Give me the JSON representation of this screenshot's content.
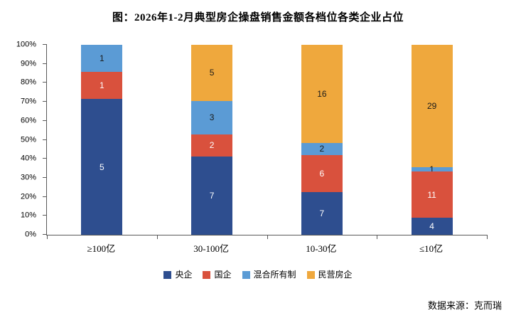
{
  "title": "图：2026年1-2月典型房企操盘销售金额各档位各类企业占位",
  "source": "数据来源：克而瑞",
  "chart_data": {
    "type": "bar",
    "subtype": "percent-stacked-column",
    "title": "图：2026年1-2月典型房企操盘销售金额各档位各类企业占位",
    "xlabel": "",
    "ylabel": "",
    "categories": [
      "≥100亿",
      "30-100亿",
      "10-30亿",
      "≤10亿"
    ],
    "series": [
      {
        "name": "央企",
        "color": "#2E4E8F",
        "label_color": "#FFFFFF",
        "values": [
          5,
          7,
          7,
          4
        ]
      },
      {
        "name": "国企",
        "color": "#D9513D",
        "label_color": "#FFFFFF",
        "values": [
          1,
          2,
          6,
          11
        ]
      },
      {
        "name": "混合所有制",
        "color": "#5B9BD5",
        "label_color": "#1A1A1A",
        "values": [
          1,
          3,
          2,
          1
        ]
      },
      {
        "name": "民营房企",
        "color": "#EFA83D",
        "label_color": "#1A1A1A",
        "values": [
          0,
          5,
          16,
          29
        ]
      }
    ],
    "y_ticks": [
      "0%",
      "10%",
      "20%",
      "30%",
      "40%",
      "50%",
      "60%",
      "70%",
      "80%",
      "90%",
      "100%"
    ],
    "ylim": [
      0,
      100
    ],
    "grid": false,
    "legend_position": "bottom",
    "axis_color": "#595959",
    "source": "数据来源：克而瑞"
  }
}
